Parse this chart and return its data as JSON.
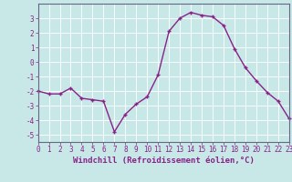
{
  "x": [
    0,
    1,
    2,
    3,
    4,
    5,
    6,
    7,
    8,
    9,
    10,
    11,
    12,
    13,
    14,
    15,
    16,
    17,
    18,
    19,
    20,
    21,
    22,
    23
  ],
  "y": [
    -2.0,
    -2.2,
    -2.2,
    -1.8,
    -2.5,
    -2.6,
    -2.7,
    -4.8,
    -3.6,
    -2.9,
    -2.4,
    -0.9,
    2.1,
    3.0,
    3.4,
    3.2,
    3.1,
    2.5,
    0.9,
    -0.4,
    -1.3,
    -2.1,
    -2.7,
    -3.9
  ],
  "line_color": "#882288",
  "marker": "+",
  "markersize": 3.5,
  "linewidth": 1.0,
  "bg_color": "#c8e8e8",
  "grid_color": "#ffffff",
  "xlabel": "Windchill (Refroidissement éolien,°C)",
  "xlim": [
    0,
    23
  ],
  "ylim": [
    -5.5,
    4.0
  ],
  "yticks": [
    -5,
    -4,
    -3,
    -2,
    -1,
    0,
    1,
    2,
    3
  ],
  "xticks": [
    0,
    1,
    2,
    3,
    4,
    5,
    6,
    7,
    8,
    9,
    10,
    11,
    12,
    13,
    14,
    15,
    16,
    17,
    18,
    19,
    20,
    21,
    22,
    23
  ],
  "tick_fontsize": 5.5,
  "xlabel_fontsize": 6.5,
  "label_color": "#882288",
  "spine_color": "#666688"
}
